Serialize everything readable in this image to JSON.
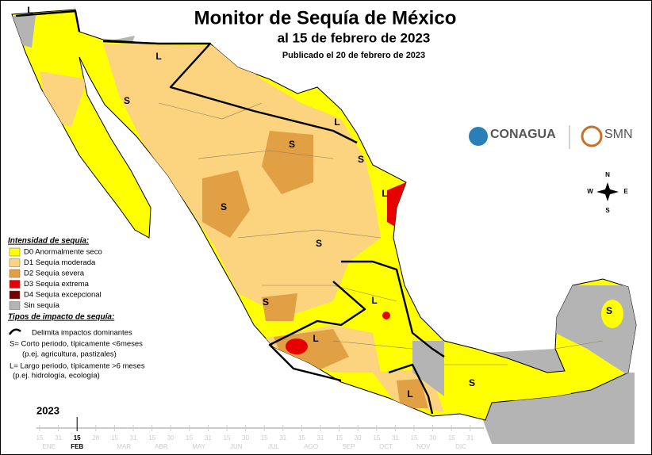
{
  "header": {
    "title": "Monitor de Sequía de México",
    "subtitle": "al 15 de febrero de 2023",
    "published": "Publicado el 20 de febrero de 2023"
  },
  "logos": {
    "conagua": "CONAGUA",
    "smn": "SMN"
  },
  "compass": {
    "n": "N",
    "s": "S",
    "e": "E",
    "w": "W"
  },
  "legend": {
    "intensity_title": "Intensidad de sequía:",
    "categories": [
      {
        "label": "D0 Anormalmente seco",
        "color": "#ffff00"
      },
      {
        "label": "D1 Sequía moderada",
        "color": "#fcd37f"
      },
      {
        "label": "D2 Sequía severa",
        "color": "#e1a043"
      },
      {
        "label": "D3 Sequía extrema",
        "color": "#e60000"
      },
      {
        "label": "D4 Sequía excepcional",
        "color": "#730000"
      },
      {
        "label": "Sin sequía",
        "color": "#b4b4b4"
      }
    ],
    "impact_title": "Tipos de impacto de sequía:",
    "boundary": "Delimita impactos dominantes",
    "short_term": "S= Corto periodo, típicamente <6meses",
    "short_term_example": "(p.ej. agricultura, pastizales)",
    "long_term": "L= Largo periodo, típicamente >6 meses",
    "long_term_example": "(p.ej. hidrología, ecología)"
  },
  "map_labels": [
    "L",
    "L",
    "S",
    "L",
    "S",
    "S",
    "L",
    "S",
    "S",
    "S",
    "L",
    "L",
    "S",
    "S",
    "L"
  ],
  "timeline": {
    "year": "2023",
    "days": [
      "15",
      "31",
      "15",
      "28",
      "15",
      "31",
      "15",
      "30",
      "15",
      "31",
      "15",
      "30",
      "15",
      "31",
      "15",
      "31",
      "15",
      "30",
      "15",
      "31",
      "15",
      "30",
      "15",
      "31"
    ],
    "months": [
      "ENE",
      "FEB",
      "MAR",
      "ABR",
      "MAY",
      "JUN",
      "JUL",
      "AGO",
      "SEP",
      "OCT",
      "NOV",
      "DIC"
    ],
    "current": {
      "day": "15",
      "month": "FEB"
    }
  }
}
